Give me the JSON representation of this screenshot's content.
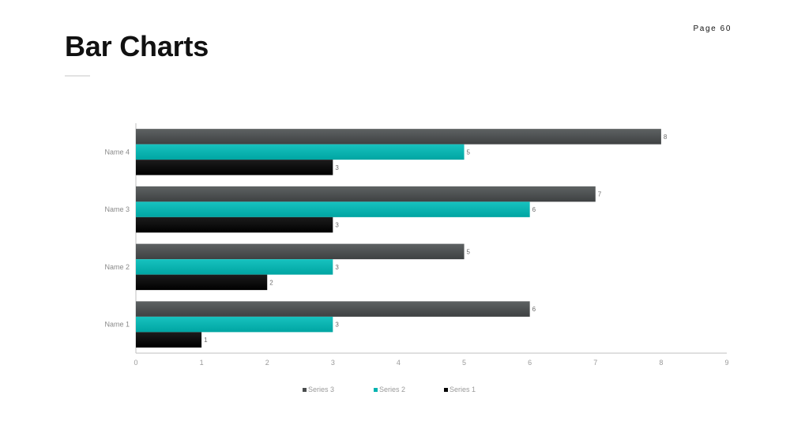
{
  "page": {
    "title": "Bar Charts",
    "page_number": "Page 60"
  },
  "chart_data": {
    "type": "bar",
    "orientation": "horizontal",
    "categories": [
      "Name 1",
      "Name 2",
      "Name 3",
      "Name 4"
    ],
    "series": [
      {
        "name": "Series 3",
        "color": "#4a4d4e",
        "values": [
          6,
          5,
          7,
          8
        ]
      },
      {
        "name": "Series 2",
        "color": "#00b3b0",
        "values": [
          3,
          3,
          6,
          5
        ]
      },
      {
        "name": "Series 1",
        "color": "#050505",
        "values": [
          1,
          2,
          3,
          3
        ]
      }
    ],
    "xlim": [
      0,
      9
    ],
    "x_ticks": [
      "0",
      "1",
      "2",
      "3",
      "4",
      "5",
      "6",
      "7",
      "8",
      "9"
    ],
    "data_labels": true,
    "legend_position": "bottom",
    "grid": false
  }
}
